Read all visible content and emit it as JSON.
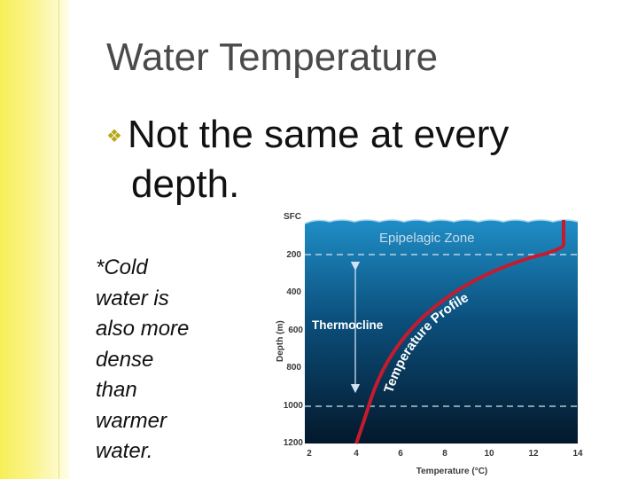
{
  "slide": {
    "title": "Water Temperature",
    "bullet_icon": "fancy-bullet-icon",
    "bullet_line1": "Not the same at every",
    "bullet_line2": "depth.",
    "note_lines": [
      "*Cold",
      "water is",
      "also more",
      "dense",
      "than",
      "warmer",
      "water."
    ]
  },
  "diagram": {
    "surface_label": "SFC",
    "zone_label": "Epipelagic Zone",
    "thermocline_label": "Thermocline",
    "profile_label": "Temperature Profile",
    "y_axis_label": "Depth (m)",
    "x_axis_label": "Temperature (°C)",
    "depth_ticks": [
      "200",
      "400",
      "600",
      "800",
      "1000",
      "1200"
    ],
    "temp_ticks": [
      "2",
      "4",
      "6",
      "8",
      "10",
      "12",
      "14"
    ],
    "colors": {
      "water_top": "#1f8ec6",
      "water_bottom": "#04182b",
      "profile": "#c51b2e"
    }
  }
}
